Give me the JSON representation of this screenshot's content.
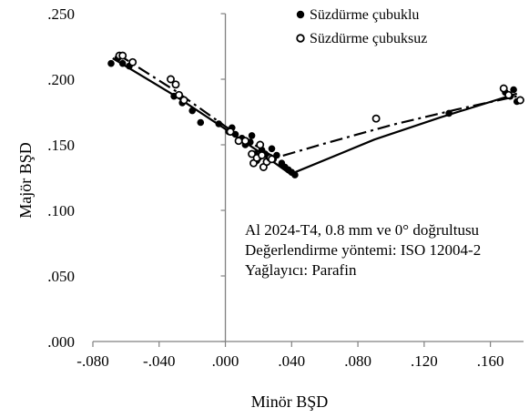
{
  "chart_data": {
    "type": "scatter",
    "xlabel": "Minör BŞD",
    "ylabel": "Majör BŞD",
    "xlim": [
      -0.08,
      0.18
    ],
    "ylim": [
      0.0,
      0.25
    ],
    "x_ticks": [
      -0.08,
      -0.04,
      0.0,
      0.04,
      0.08,
      0.12,
      0.16
    ],
    "x_tick_labels": [
      "-.080",
      "-.040",
      ".000",
      ".040",
      ".080",
      ".120",
      ".160"
    ],
    "y_ticks": [
      0.0,
      0.05,
      0.1,
      0.15,
      0.2,
      0.25
    ],
    "y_tick_labels": [
      ".000",
      ".050",
      ".100",
      ".150",
      ".200",
      ".250"
    ],
    "grid": false,
    "legend_position": "top-right",
    "series": [
      {
        "name": "Süzdürme çubuklu",
        "marker": "filled-circle",
        "line_style": "solid",
        "points": [
          [
            -0.069,
            0.212
          ],
          [
            -0.065,
            0.216
          ],
          [
            -0.062,
            0.212
          ],
          [
            -0.058,
            0.21
          ],
          [
            -0.031,
            0.187
          ],
          [
            -0.026,
            0.182
          ],
          [
            -0.02,
            0.176
          ],
          [
            -0.015,
            0.167
          ],
          [
            -0.004,
            0.166
          ],
          [
            0.002,
            0.16
          ],
          [
            0.004,
            0.163
          ],
          [
            0.006,
            0.158
          ],
          [
            0.01,
            0.155
          ],
          [
            0.012,
            0.15
          ],
          [
            0.015,
            0.152
          ],
          [
            0.016,
            0.157
          ],
          [
            0.018,
            0.143
          ],
          [
            0.019,
            0.138
          ],
          [
            0.02,
            0.14
          ],
          [
            0.022,
            0.146
          ],
          [
            0.024,
            0.143
          ],
          [
            0.026,
            0.141
          ],
          [
            0.028,
            0.147
          ],
          [
            0.029,
            0.139
          ],
          [
            0.031,
            0.142
          ],
          [
            0.034,
            0.136
          ],
          [
            0.036,
            0.133
          ],
          [
            0.038,
            0.131
          ],
          [
            0.04,
            0.129
          ],
          [
            0.042,
            0.127
          ],
          [
            0.135,
            0.174
          ],
          [
            0.169,
            0.19
          ],
          [
            0.172,
            0.187
          ],
          [
            0.174,
            0.192
          ],
          [
            0.176,
            0.183
          ]
        ],
        "fit_line": [
          [
            -0.068,
            0.216
          ],
          [
            -0.03,
            0.187
          ],
          [
            0.0,
            0.162
          ],
          [
            0.02,
            0.145
          ],
          [
            0.04,
            0.127
          ]
        ]
      },
      {
        "name": "Süzdürme çubuksuz",
        "marker": "open-circle",
        "line_style": "dash-dot",
        "points": [
          [
            -0.064,
            0.218
          ],
          [
            -0.062,
            0.218
          ],
          [
            -0.056,
            0.213
          ],
          [
            -0.033,
            0.2
          ],
          [
            -0.03,
            0.196
          ],
          [
            -0.028,
            0.188
          ],
          [
            -0.025,
            0.184
          ],
          [
            0.003,
            0.16
          ],
          [
            0.008,
            0.153
          ],
          [
            0.012,
            0.153
          ],
          [
            0.016,
            0.143
          ],
          [
            0.017,
            0.136
          ],
          [
            0.019,
            0.14
          ],
          [
            0.021,
            0.15
          ],
          [
            0.022,
            0.142
          ],
          [
            0.023,
            0.133
          ],
          [
            0.025,
            0.137
          ],
          [
            0.027,
            0.14
          ],
          [
            0.028,
            0.139
          ],
          [
            0.091,
            0.17
          ],
          [
            0.168,
            0.193
          ],
          [
            0.171,
            0.188
          ],
          [
            0.178,
            0.184
          ]
        ],
        "fit_line": [
          [
            -0.065,
            0.219
          ],
          [
            -0.03,
            0.191
          ],
          [
            0.0,
            0.164
          ],
          [
            0.03,
            0.14
          ],
          [
            0.06,
            0.151
          ],
          [
            0.1,
            0.165
          ],
          [
            0.14,
            0.177
          ],
          [
            0.176,
            0.187
          ]
        ]
      },
      {
        "name": "",
        "marker": "none",
        "line_style": "solid",
        "points": [],
        "fit_line": [
          [
            0.04,
            0.128
          ],
          [
            0.09,
            0.154
          ],
          [
            0.13,
            0.171
          ],
          [
            0.176,
            0.189
          ]
        ]
      }
    ],
    "annotations": [
      "Al 2024-T4, 0.8 mm ve 0° doğrultusu",
      "Değerlendirme yöntemi: ISO 12004-2",
      "Yağlayıcı: Parafin"
    ]
  }
}
